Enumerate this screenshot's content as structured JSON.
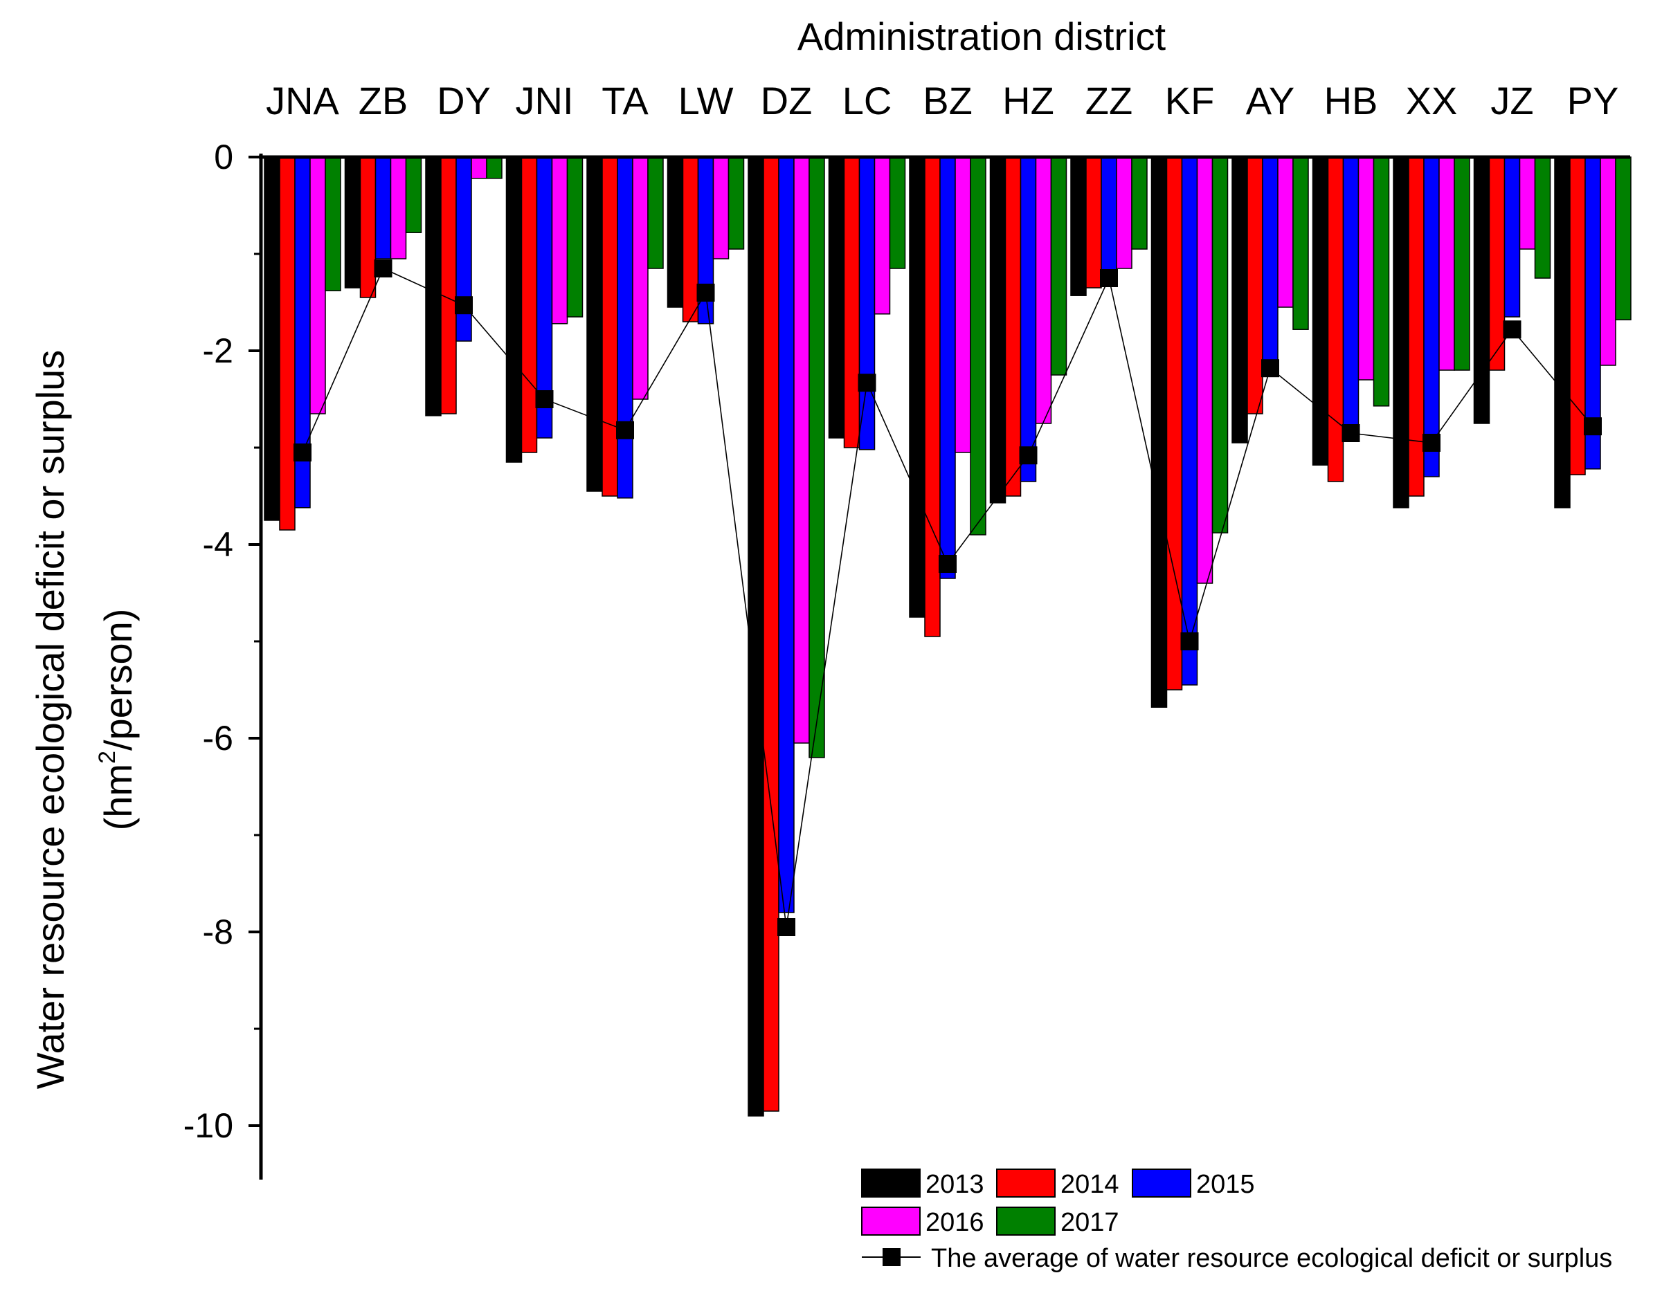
{
  "chart_data": {
    "type": "bar",
    "xlabel": "Administration district",
    "ylabel_line1": "Water resource ecological deficit or surplus",
    "ylabel_line2_prefix": "(hm",
    "ylabel_line2_sup": "2",
    "ylabel_line2_suffix": "/person)",
    "ylim": [
      -10.6,
      0
    ],
    "yticks": [
      0,
      -2,
      -4,
      -6,
      -8,
      -10
    ],
    "ytick_labels": [
      "0",
      "-2",
      "-4",
      "-6",
      "-8",
      "-10"
    ],
    "x_axis_position": "top",
    "categories": [
      "JNA",
      "ZB",
      "DY",
      "JNI",
      "TA",
      "LW",
      "DZ",
      "LC",
      "BZ",
      "HZ",
      "ZZ",
      "KF",
      "AY",
      "HB",
      "XX",
      "JZ",
      "PY"
    ],
    "series": [
      {
        "name": "2013",
        "color": "#000000",
        "values": [
          -3.75,
          -1.35,
          -2.67,
          -3.15,
          -3.45,
          -1.55,
          -9.9,
          -2.9,
          -4.75,
          -3.57,
          -1.43,
          -5.68,
          -2.95,
          -3.18,
          -3.62,
          -2.75,
          -3.62
        ]
      },
      {
        "name": "2014",
        "color": "#ff0000",
        "values": [
          -3.85,
          -1.45,
          -2.65,
          -3.05,
          -3.5,
          -1.7,
          -9.85,
          -3.0,
          -4.95,
          -3.5,
          -1.35,
          -5.5,
          -2.65,
          -3.35,
          -3.5,
          -2.2,
          -3.28
        ]
      },
      {
        "name": "2015",
        "color": "#0000ff",
        "values": [
          -3.62,
          -1.05,
          -1.9,
          -2.9,
          -3.52,
          -1.72,
          -7.8,
          -3.02,
          -4.35,
          -3.35,
          -1.2,
          -5.45,
          -2.1,
          -2.85,
          -3.3,
          -1.65,
          -3.22
        ]
      },
      {
        "name": "2016",
        "color": "#ff00ff",
        "values": [
          -2.65,
          -1.05,
          -0.22,
          -1.72,
          -2.5,
          -1.05,
          -6.05,
          -1.62,
          -3.05,
          -2.75,
          -1.15,
          -4.4,
          -1.55,
          -2.3,
          -2.2,
          -0.95,
          -2.15
        ]
      },
      {
        "name": "2017",
        "color": "#008000",
        "values": [
          -1.38,
          -0.78,
          -0.22,
          -1.65,
          -1.15,
          -0.95,
          -6.2,
          -1.15,
          -3.9,
          -2.25,
          -0.95,
          -3.88,
          -1.78,
          -2.57,
          -2.2,
          -1.25,
          -1.68
        ]
      }
    ],
    "average": {
      "name": "The average of water resource ecological deficit or surplus",
      "color": "#000000",
      "values": [
        -3.05,
        -1.15,
        -1.53,
        -2.5,
        -2.82,
        -1.4,
        -7.95,
        -2.33,
        -4.2,
        -3.08,
        -1.25,
        -5.0,
        -2.18,
        -2.85,
        -2.95,
        -1.78,
        -2.78
      ]
    },
    "legend": {
      "position": "bottom-right",
      "row1": [
        "2013",
        "2014",
        "2015"
      ],
      "row2": [
        "2016",
        "2017"
      ],
      "line_label": "The average of water resource ecological deficit or surplus"
    }
  }
}
